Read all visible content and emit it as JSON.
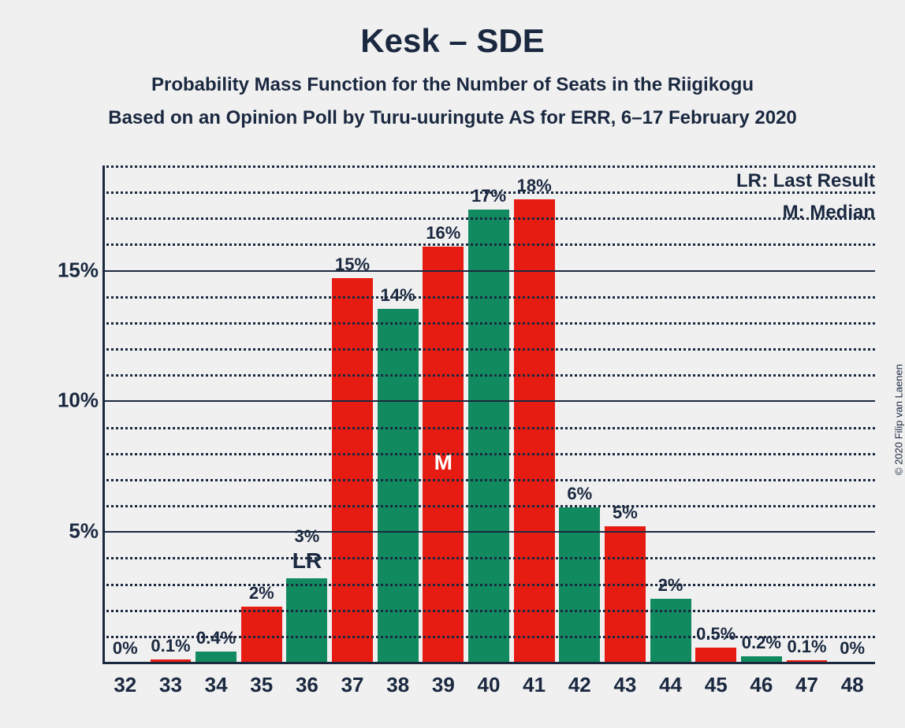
{
  "copyright": "© 2020 Filip van Laenen",
  "title": "Kesk – SDE",
  "subtitle": "Probability Mass Function for the Number of Seats in the Riigikogu",
  "subtitle2": "Based on an Opinion Poll by Turu-uuringute AS for ERR, 6–17 February 2020",
  "legend": {
    "lr": "LR: Last Result",
    "m": "M: Median"
  },
  "chart": {
    "type": "bar",
    "background_color": "#f0f0f0",
    "axis_color": "#1a2840",
    "bar_colors": {
      "green": "#118a5f",
      "red": "#e61c13"
    },
    "bar_width": 0.9,
    "y_max": 19,
    "y_major_ticks": [
      5,
      10,
      15
    ],
    "y_minor_step": 1,
    "categories": [
      32,
      33,
      34,
      35,
      36,
      37,
      38,
      39,
      40,
      41,
      42,
      43,
      44,
      45,
      46,
      47,
      48
    ],
    "values": [
      0,
      0.1,
      0.4,
      2,
      3,
      15,
      14,
      16,
      17,
      18,
      6,
      5,
      2,
      0.5,
      0.2,
      0.1,
      0
    ],
    "value_labels": [
      "0%",
      "0.1%",
      "0.4%",
      "2%",
      "3%",
      "15%",
      "14%",
      "16%",
      "17%",
      "18%",
      "6%",
      "5%",
      "2%",
      "0.5%",
      "0.2%",
      "0.1%",
      "0%"
    ],
    "value_heights": [
      0,
      0.1,
      0.4,
      2.1,
      3.2,
      14.7,
      13.5,
      15.9,
      17.3,
      17.7,
      5.9,
      5.2,
      2.4,
      0.55,
      0.2,
      0.05,
      0
    ],
    "colors_idx": [
      "green",
      "red",
      "green",
      "red",
      "green",
      "red",
      "green",
      "red",
      "green",
      "red",
      "green",
      "red",
      "green",
      "red",
      "green",
      "red",
      "green"
    ],
    "annotations": [
      {
        "text": "LR",
        "bar_index": 4,
        "placement": "below"
      },
      {
        "text": "M",
        "bar_index": 7,
        "placement": "inside"
      }
    ]
  }
}
